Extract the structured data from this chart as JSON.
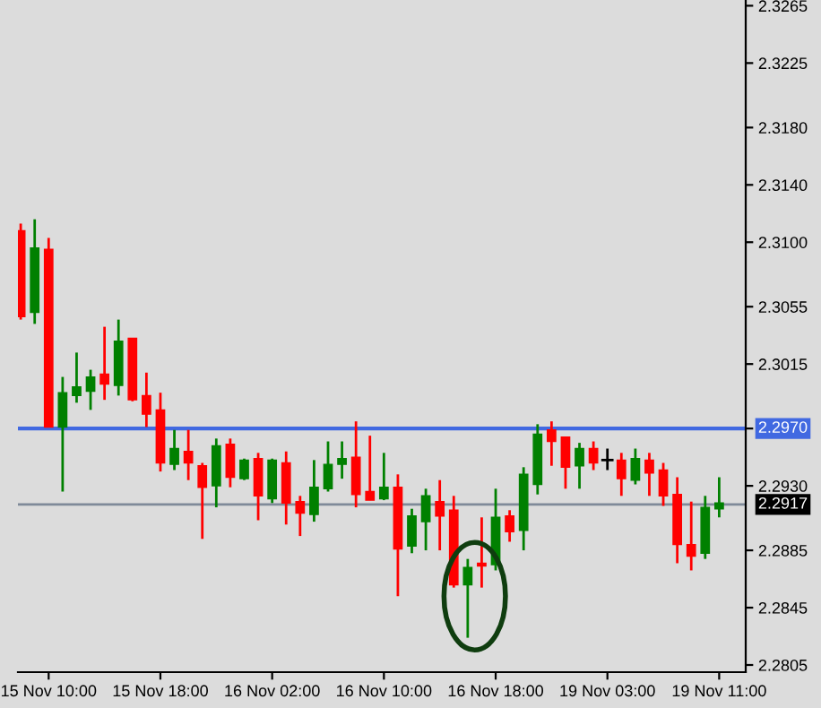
{
  "chart_data": {
    "type": "candlestick",
    "categories": [
      null,
      null,
      "15 Nov 10:00",
      null,
      null,
      null,
      null,
      null,
      null,
      null,
      "15 Nov 18:00",
      null,
      null,
      null,
      null,
      null,
      null,
      null,
      "16 Nov 02:00",
      null,
      null,
      null,
      null,
      null,
      null,
      null,
      "16 Nov 10:00",
      null,
      null,
      null,
      null,
      null,
      null,
      null,
      "16 Nov 18:00",
      null,
      null,
      null,
      null,
      null,
      null,
      null,
      "19 Nov 03:00",
      null,
      null,
      null,
      null,
      null,
      null,
      null,
      "19 Nov 11:00"
    ],
    "ohlc": [
      [
        2.3108,
        2.3113,
        2.3046,
        2.3048
      ],
      [
        2.3051,
        2.3116,
        2.3043,
        2.3096
      ],
      [
        2.3095,
        2.3103,
        2.2971,
        2.2971
      ],
      [
        2.2971,
        2.3006,
        2.2926,
        2.2995
      ],
      [
        2.2993,
        2.3023,
        2.2988,
        2.2999
      ],
      [
        2.2996,
        2.3011,
        2.2983,
        2.3006
      ],
      [
        2.3008,
        2.3041,
        2.299,
        2.3001
      ],
      [
        2.3,
        2.3046,
        2.2993,
        2.3031
      ],
      [
        2.3033,
        2.3033,
        2.2989,
        2.299
      ],
      [
        2.2993,
        2.3009,
        2.2971,
        2.298
      ],
      [
        2.2983,
        2.2995,
        2.294,
        2.2946
      ],
      [
        2.2945,
        2.2969,
        2.2941,
        2.2956
      ],
      [
        2.2954,
        2.2969,
        2.2934,
        2.2946
      ],
      [
        2.2944,
        2.2946,
        2.2893,
        2.2929
      ],
      [
        2.293,
        2.2963,
        2.2915,
        2.2958
      ],
      [
        2.2959,
        2.2963,
        2.2929,
        2.2936
      ],
      [
        2.2935,
        2.2949,
        2.2934,
        2.2948
      ],
      [
        2.2949,
        2.2953,
        2.2906,
        2.2923
      ],
      [
        2.2921,
        2.2949,
        2.2918,
        2.2948
      ],
      [
        2.2946,
        2.2954,
        2.2903,
        2.2918
      ],
      [
        2.2919,
        2.2923,
        2.2895,
        2.2911
      ],
      [
        2.291,
        2.2948,
        2.2905,
        2.2929
      ],
      [
        2.2928,
        2.2961,
        2.2926,
        2.2945
      ],
      [
        2.2945,
        2.2961,
        2.2935,
        2.2949
      ],
      [
        2.295,
        2.2975,
        2.2915,
        2.2924
      ],
      [
        2.2926,
        2.2965,
        2.292,
        2.292
      ],
      [
        2.2921,
        2.2953,
        2.292,
        2.2929
      ],
      [
        2.2929,
        2.2938,
        2.2853,
        2.2886
      ],
      [
        2.2888,
        2.2914,
        2.2883,
        2.2909
      ],
      [
        2.2905,
        2.2928,
        2.2885,
        2.2923
      ],
      [
        2.2919,
        2.2934,
        2.2885,
        2.2909
      ],
      [
        2.2913,
        2.2923,
        2.2859,
        2.2861
      ],
      [
        2.2861,
        2.2879,
        2.2824,
        2.2873
      ],
      [
        2.2876,
        2.2908,
        2.2859,
        2.2874
      ],
      [
        2.2875,
        2.2928,
        2.2871,
        2.2908
      ],
      [
        2.2909,
        2.2913,
        2.2891,
        2.2898
      ],
      [
        2.2899,
        2.2943,
        2.2885,
        2.2938
      ],
      [
        2.2931,
        2.2973,
        2.2924,
        2.2966
      ],
      [
        2.2969,
        2.2975,
        2.2944,
        2.2961
      ],
      [
        2.2964,
        2.2964,
        2.2928,
        2.2943
      ],
      [
        2.2944,
        2.296,
        2.2928,
        2.2956
      ],
      [
        2.2956,
        2.2961,
        2.2941,
        2.2946
      ],
      [
        2.2948,
        2.2956,
        2.2941,
        2.2948
      ],
      [
        2.2948,
        2.2953,
        2.2923,
        2.2935
      ],
      [
        2.2934,
        2.2956,
        2.2931,
        2.2949
      ],
      [
        2.2948,
        2.2953,
        2.2923,
        2.2939
      ],
      [
        2.2941,
        2.2946,
        2.2916,
        2.2923
      ],
      [
        2.2924,
        2.2936,
        2.2876,
        2.2889
      ],
      [
        2.2889,
        2.2919,
        2.2871,
        2.2881
      ],
      [
        2.2883,
        2.2923,
        2.2879,
        2.2915
      ],
      [
        2.2914,
        2.2936,
        2.2908,
        2.2918
      ]
    ],
    "colors": [
      "#ff0000",
      "#008000",
      "#ff0000",
      "#008000",
      "#008000",
      "#008000",
      "#ff0000",
      "#008000",
      "#ff0000",
      "#ff0000",
      "#ff0000",
      "#008000",
      "#ff0000",
      "#ff0000",
      "#008000",
      "#ff0000",
      "#008000",
      "#ff0000",
      "#008000",
      "#ff0000",
      "#ff0000",
      "#008000",
      "#008000",
      "#008000",
      "#ff0000",
      "#ff0000",
      "#008000",
      "#ff0000",
      "#008000",
      "#008000",
      "#ff0000",
      "#ff0000",
      "#008000",
      "#ff0000",
      "#008000",
      "#ff0000",
      "#008000",
      "#008000",
      "#ff0000",
      "#ff0000",
      "#008000",
      "#ff0000",
      "#000000",
      "#ff0000",
      "#008000",
      "#ff0000",
      "#ff0000",
      "#ff0000",
      "#ff0000",
      "#008000",
      "#008000"
    ],
    "ylim": [
      2.28,
      2.3269
    ],
    "yticks": [
      {
        "value": 2.2805,
        "label": "2.2805"
      },
      {
        "value": 2.2845,
        "label": "2.2845"
      },
      {
        "value": 2.2885,
        "label": "2.2885"
      },
      {
        "value": 2.293,
        "label": "2.2930"
      },
      {
        "value": 2.297,
        "label": "2.2970"
      },
      {
        "value": 2.3015,
        "label": "2.3015"
      },
      {
        "value": 2.3055,
        "label": "2.3055"
      },
      {
        "value": 2.31,
        "label": "2.3100"
      },
      {
        "value": 2.314,
        "label": "2.3140"
      },
      {
        "value": 2.318,
        "label": "2.3180"
      },
      {
        "value": 2.3225,
        "label": "2.3225"
      },
      {
        "value": 2.3265,
        "label": "2.3265"
      }
    ],
    "ref_lines": [
      {
        "axis": "y",
        "value": 2.297,
        "label": "2.2970",
        "color": "#4169e1"
      },
      {
        "axis": "y",
        "value": 2.2917,
        "label": "2.2917",
        "color": "#7f8a99"
      }
    ],
    "grid": false,
    "legend": false
  }
}
